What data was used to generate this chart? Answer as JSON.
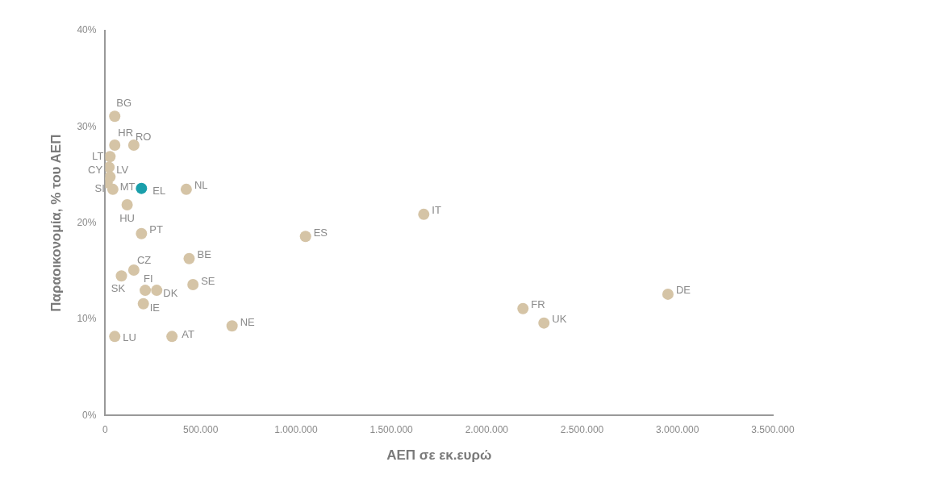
{
  "chart_data": {
    "type": "scatter",
    "xlabel": "ΑΕΠ σε εκ.ευρώ",
    "ylabel": "Παραοικονομία, % του ΑΕΠ",
    "x": [
      50000,
      50000,
      150000,
      25000,
      20000,
      25000,
      10000,
      40000,
      190000,
      425000,
      115000,
      190000,
      440000,
      150000,
      85000,
      210000,
      270000,
      460000,
      200000,
      665000,
      50000,
      350000,
      1050000,
      1670000,
      2190000,
      2300000,
      2950000
    ],
    "series": [
      {
        "values": [
          31.1,
          28.1,
          28.1,
          26.9,
          25.8,
          24.8,
          24.2,
          23.5,
          23.6,
          23.5,
          21.9,
          18.9,
          16.3,
          15.1,
          14.5,
          13.0,
          13.0,
          13.6,
          11.6,
          9.3,
          8.2,
          8.2,
          18.6,
          20.9,
          11.1,
          9.6,
          12.6
        ],
        "colors": [
          "#d5c4a6",
          "#d5c4a6",
          "#d5c4a6",
          "#d5c4a6",
          "#d5c4a6",
          "#d5c4a6",
          "#d5c4a6",
          "#d5c4a6",
          "#1a9fab",
          "#d5c4a6",
          "#d5c4a6",
          "#d5c4a6",
          "#d5c4a6",
          "#d5c4a6",
          "#d5c4a6",
          "#d5c4a6",
          "#d5c4a6",
          "#d5c4a6",
          "#d5c4a6",
          "#d5c4a6",
          "#d5c4a6",
          "#d5c4a6",
          "#d5c4a6",
          "#d5c4a6",
          "#d5c4a6",
          "#d5c4a6",
          "#d5c4a6"
        ]
      }
    ],
    "annotations": [
      {
        "text": "BG",
        "x": 50000,
        "y": 31.1
      },
      {
        "text": "HR",
        "x": 50000,
        "y": 28.1
      },
      {
        "text": "RO",
        "x": 150000,
        "y": 28.1
      },
      {
        "text": "LT",
        "x": 25000,
        "y": 26.9
      },
      {
        "text": "CY",
        "x": 20000,
        "y": 25.8
      },
      {
        "text": "LV",
        "x": 25000,
        "y": 24.8
      },
      {
        "text": "MT",
        "x": 10000,
        "y": 24.2
      },
      {
        "text": "SI",
        "x": 40000,
        "y": 23.5
      },
      {
        "text": "EL",
        "x": 190000,
        "y": 23.6
      },
      {
        "text": "NL",
        "x": 425000,
        "y": 23.5
      },
      {
        "text": "HU",
        "x": 115000,
        "y": 21.9
      },
      {
        "text": "PT",
        "x": 190000,
        "y": 18.9
      },
      {
        "text": "BE",
        "x": 440000,
        "y": 16.3
      },
      {
        "text": "CZ",
        "x": 150000,
        "y": 15.1
      },
      {
        "text": "SK",
        "x": 85000,
        "y": 14.5
      },
      {
        "text": "FI",
        "x": 210000,
        "y": 13.0
      },
      {
        "text": "DK",
        "x": 270000,
        "y": 13.0
      },
      {
        "text": "SE",
        "x": 460000,
        "y": 13.6
      },
      {
        "text": "IE",
        "x": 200000,
        "y": 11.6
      },
      {
        "text": "NE",
        "x": 665000,
        "y": 9.3
      },
      {
        "text": "LU",
        "x": 50000,
        "y": 8.2
      },
      {
        "text": "AT",
        "x": 350000,
        "y": 8.2
      },
      {
        "text": "ES",
        "x": 1050000,
        "y": 18.6
      },
      {
        "text": "IT",
        "x": 1670000,
        "y": 20.9
      },
      {
        "text": "FR",
        "x": 2190000,
        "y": 11.1
      },
      {
        "text": "UK",
        "x": 2300000,
        "y": 9.6
      },
      {
        "text": "DE",
        "x": 2950000,
        "y": 12.6
      }
    ],
    "xlim": [
      0,
      3500000
    ],
    "xticks": [
      0,
      {
        "value": 500000,
        "label": "500.000"
      },
      {
        "value": 1000000,
        "label": "1.000.000"
      },
      {
        "value": 1500000,
        "label": "1.500.000"
      },
      {
        "value": 2000000,
        "label": "2.000.000"
      },
      {
        "value": 2500000,
        "label": "2.500.000"
      },
      {
        "value": 3000000,
        "label": "3.000.000"
      },
      {
        "value": 3500000,
        "label": "3.500.000"
      }
    ],
    "ylim": [
      0,
      40
    ],
    "yticks": [
      {
        "value": 0,
        "label": "0%"
      },
      {
        "value": 10,
        "label": "10%"
      },
      {
        "value": 20,
        "label": "20%"
      },
      {
        "value": 30,
        "label": "30%"
      },
      {
        "value": 40,
        "label": "40%"
      }
    ],
    "grid": false,
    "legend": false,
    "marker": "circle"
  }
}
